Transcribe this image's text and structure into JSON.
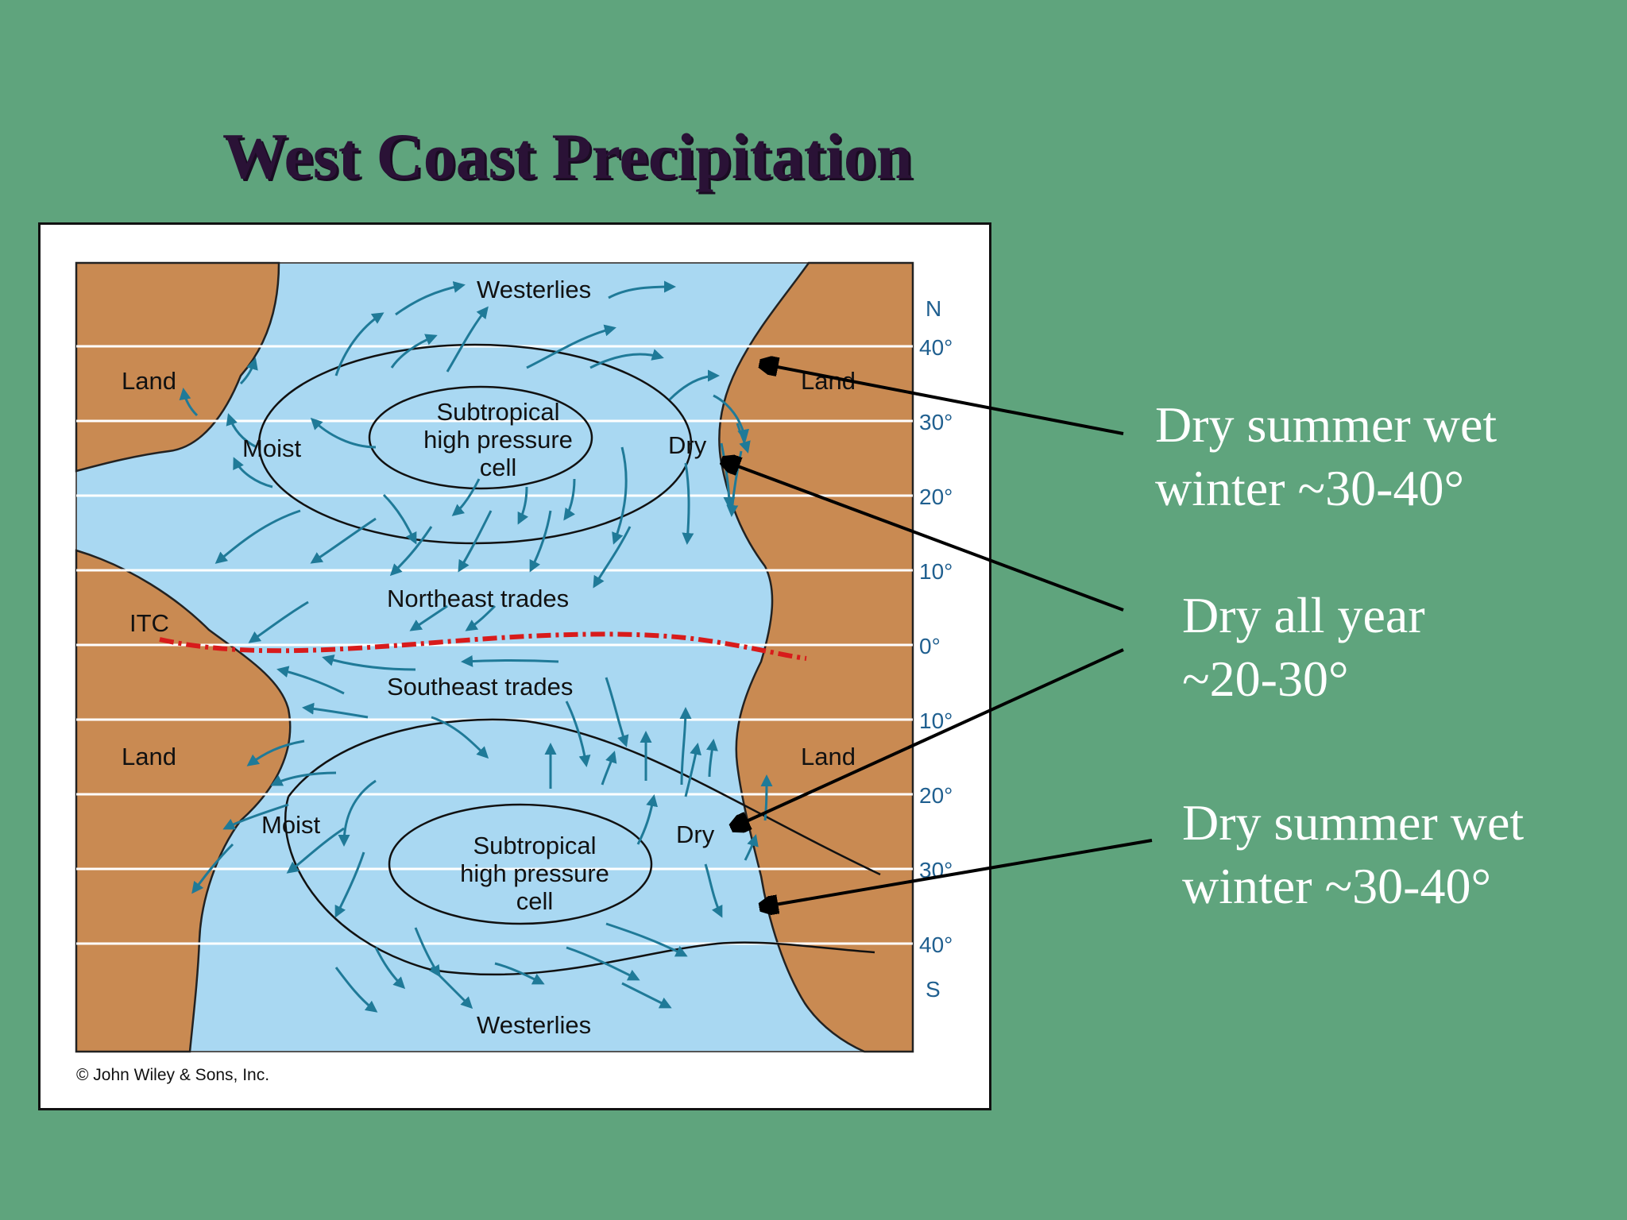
{
  "slide": {
    "title": "West Coast Precipitation"
  },
  "diagram": {
    "land_labels": [
      "Land",
      "Land",
      "Land",
      "Land"
    ],
    "moist_labels": [
      "Moist",
      "Moist"
    ],
    "dry_labels": [
      "Dry",
      "Dry"
    ],
    "high_pressure_north": [
      "Subtropical",
      "high pressure",
      "cell"
    ],
    "high_pressure_south": [
      "Subtropical",
      "high pressure",
      "cell"
    ],
    "winds": {
      "westerlies_north": "Westerlies",
      "westerlies_south": "Westerlies",
      "northeast_trades": "Northeast trades",
      "southeast_trades": "Southeast trades"
    },
    "itc_label": "ITC",
    "latitude_labels": [
      "N",
      "40°",
      "30°",
      "20°",
      "10°",
      "0°",
      "10°",
      "20°",
      "30°",
      "40°",
      "S"
    ],
    "copyright": "© John Wiley & Sons, Inc.",
    "colors": {
      "ocean": "#a9d8f2",
      "land": "#c98a52",
      "arrows": "#1f7a98",
      "itc_line": "#d81b1b",
      "latitude_lines": "#ffffff"
    }
  },
  "callouts": [
    {
      "line1": "Dry summer wet",
      "line2": "winter ~30-40°"
    },
    {
      "line1": "Dry all year",
      "line2": "~20-30°"
    },
    {
      "line1": "Dry summer wet",
      "line2": "winter ~30-40°"
    }
  ]
}
